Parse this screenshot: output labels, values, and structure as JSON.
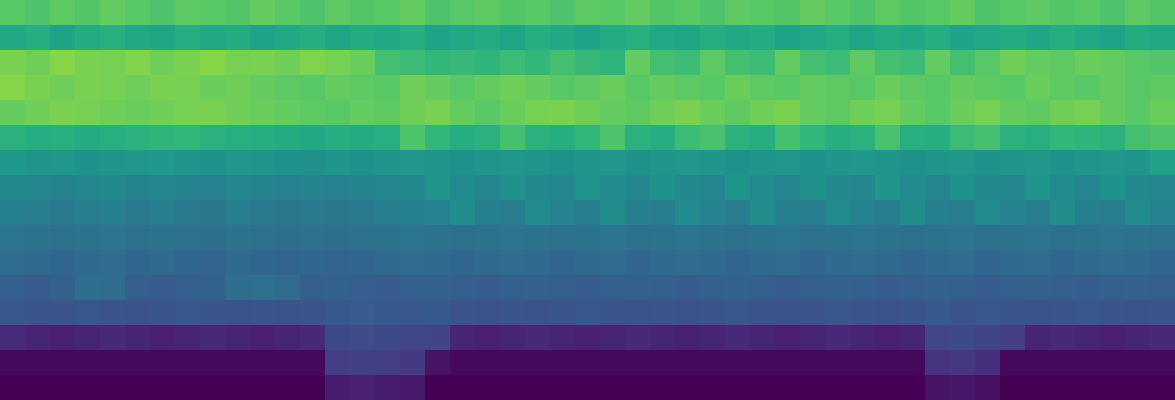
{
  "chart_data": {
    "type": "heatmap",
    "tick_labels": false,
    "color": "viridis",
    "color_range": [
      0,
      1
    ],
    "cells": [
      [
        0.74,
        0.72,
        0.75,
        0.73,
        0.76,
        0.74,
        0.72,
        0.75,
        0.74,
        0.73,
        0.76,
        0.74,
        0.72,
        0.75,
        0.73,
        0.74,
        0.76,
        0.72,
        0.74,
        0.75,
        0.73,
        0.74,
        0.72,
        0.75,
        0.74,
        0.76,
        0.73,
        0.74,
        0.72,
        0.75,
        0.74,
        0.73,
        0.76,
        0.74,
        0.72,
        0.75,
        0.73,
        0.74,
        0.76,
        0.72,
        0.74,
        0.75,
        0.73,
        0.74,
        0.72,
        0.75,
        0.73
      ],
      [
        0.6,
        0.62,
        0.58,
        0.61,
        0.63,
        0.6,
        0.59,
        0.62,
        0.6,
        0.61,
        0.58,
        0.6,
        0.62,
        0.59,
        0.61,
        0.6,
        0.62,
        0.58,
        0.6,
        0.61,
        0.59,
        0.62,
        0.6,
        0.58,
        0.61,
        0.63,
        0.6,
        0.59,
        0.62,
        0.6,
        0.61,
        0.58,
        0.6,
        0.62,
        0.59,
        0.61,
        0.6,
        0.62,
        0.58,
        0.6,
        0.61,
        0.59,
        0.62,
        0.6,
        0.58,
        0.61,
        0.6
      ],
      [
        0.8,
        0.78,
        0.82,
        0.8,
        0.79,
        0.81,
        0.78,
        0.8,
        0.82,
        0.79,
        0.8,
        0.78,
        0.81,
        0.79,
        0.77,
        0.7,
        0.68,
        0.66,
        0.67,
        0.65,
        0.68,
        0.66,
        0.7,
        0.67,
        0.65,
        0.76,
        0.7,
        0.68,
        0.75,
        0.7,
        0.68,
        0.76,
        0.7,
        0.68,
        0.75,
        0.7,
        0.68,
        0.76,
        0.7,
        0.74,
        0.78,
        0.76,
        0.75,
        0.77,
        0.76,
        0.74,
        0.73
      ],
      [
        0.82,
        0.8,
        0.78,
        0.8,
        0.79,
        0.78,
        0.8,
        0.79,
        0.77,
        0.78,
        0.76,
        0.75,
        0.74,
        0.76,
        0.75,
        0.74,
        0.78,
        0.76,
        0.74,
        0.76,
        0.78,
        0.76,
        0.74,
        0.75,
        0.77,
        0.74,
        0.76,
        0.75,
        0.74,
        0.77,
        0.75,
        0.74,
        0.76,
        0.75,
        0.74,
        0.77,
        0.75,
        0.74,
        0.76,
        0.75,
        0.74,
        0.77,
        0.75,
        0.74,
        0.76,
        0.74,
        0.75
      ],
      [
        0.76,
        0.78,
        0.8,
        0.79,
        0.78,
        0.77,
        0.78,
        0.79,
        0.8,
        0.78,
        0.77,
        0.76,
        0.75,
        0.74,
        0.76,
        0.75,
        0.78,
        0.8,
        0.76,
        0.74,
        0.77,
        0.79,
        0.8,
        0.78,
        0.76,
        0.75,
        0.78,
        0.8,
        0.77,
        0.75,
        0.78,
        0.8,
        0.76,
        0.75,
        0.78,
        0.79,
        0.76,
        0.74,
        0.77,
        0.79,
        0.76,
        0.75,
        0.78,
        0.79,
        0.76,
        0.74,
        0.77
      ],
      [
        0.64,
        0.62,
        0.63,
        0.61,
        0.63,
        0.64,
        0.65,
        0.66,
        0.64,
        0.63,
        0.62,
        0.61,
        0.6,
        0.62,
        0.61,
        0.63,
        0.72,
        0.66,
        0.62,
        0.64,
        0.7,
        0.64,
        0.62,
        0.66,
        0.72,
        0.64,
        0.62,
        0.68,
        0.71,
        0.64,
        0.62,
        0.7,
        0.66,
        0.62,
        0.64,
        0.71,
        0.63,
        0.62,
        0.68,
        0.7,
        0.64,
        0.63,
        0.66,
        0.65,
        0.64,
        0.7,
        0.72
      ],
      [
        0.54,
        0.52,
        0.53,
        0.51,
        0.52,
        0.53,
        0.54,
        0.52,
        0.51,
        0.53,
        0.52,
        0.51,
        0.5,
        0.52,
        0.51,
        0.52,
        0.53,
        0.52,
        0.51,
        0.52,
        0.53,
        0.52,
        0.51,
        0.52,
        0.53,
        0.51,
        0.52,
        0.53,
        0.52,
        0.51,
        0.52,
        0.53,
        0.51,
        0.52,
        0.53,
        0.52,
        0.51,
        0.52,
        0.53,
        0.51,
        0.52,
        0.53,
        0.51,
        0.52,
        0.53,
        0.52,
        0.58
      ],
      [
        0.47,
        0.46,
        0.45,
        0.46,
        0.47,
        0.45,
        0.46,
        0.45,
        0.44,
        0.46,
        0.45,
        0.44,
        0.45,
        0.44,
        0.45,
        0.46,
        0.47,
        0.52,
        0.48,
        0.46,
        0.5,
        0.47,
        0.46,
        0.52,
        0.48,
        0.46,
        0.51,
        0.47,
        0.46,
        0.52,
        0.48,
        0.46,
        0.51,
        0.47,
        0.46,
        0.52,
        0.48,
        0.46,
        0.51,
        0.47,
        0.46,
        0.52,
        0.48,
        0.46,
        0.51,
        0.47,
        0.46
      ],
      [
        0.43,
        0.42,
        0.41,
        0.42,
        0.43,
        0.41,
        0.42,
        0.41,
        0.4,
        0.42,
        0.41,
        0.4,
        0.41,
        0.4,
        0.41,
        0.42,
        0.43,
        0.44,
        0.49,
        0.43,
        0.42,
        0.48,
        0.44,
        0.42,
        0.49,
        0.43,
        0.42,
        0.48,
        0.44,
        0.42,
        0.49,
        0.43,
        0.42,
        0.48,
        0.44,
        0.42,
        0.49,
        0.43,
        0.42,
        0.48,
        0.44,
        0.42,
        0.49,
        0.43,
        0.42,
        0.48,
        0.44
      ],
      [
        0.39,
        0.38,
        0.37,
        0.38,
        0.39,
        0.37,
        0.38,
        0.37,
        0.36,
        0.38,
        0.37,
        0.36,
        0.37,
        0.36,
        0.37,
        0.38,
        0.39,
        0.38,
        0.37,
        0.38,
        0.39,
        0.38,
        0.37,
        0.38,
        0.39,
        0.37,
        0.38,
        0.39,
        0.38,
        0.37,
        0.38,
        0.39,
        0.37,
        0.38,
        0.39,
        0.38,
        0.37,
        0.38,
        0.39,
        0.37,
        0.38,
        0.39,
        0.37,
        0.38,
        0.39,
        0.38,
        0.37
      ],
      [
        0.35,
        0.34,
        0.33,
        0.34,
        0.35,
        0.33,
        0.34,
        0.33,
        0.32,
        0.34,
        0.33,
        0.32,
        0.33,
        0.32,
        0.33,
        0.34,
        0.35,
        0.34,
        0.33,
        0.34,
        0.35,
        0.34,
        0.33,
        0.34,
        0.35,
        0.33,
        0.34,
        0.35,
        0.34,
        0.33,
        0.34,
        0.35,
        0.33,
        0.34,
        0.35,
        0.34,
        0.33,
        0.34,
        0.35,
        0.33,
        0.34,
        0.35,
        0.33,
        0.34,
        0.35,
        0.34,
        0.33
      ],
      [
        0.3,
        0.29,
        0.31,
        0.36,
        0.35,
        0.3,
        0.29,
        0.3,
        0.31,
        0.36,
        0.37,
        0.35,
        0.3,
        0.31,
        0.3,
        0.29,
        0.3,
        0.31,
        0.3,
        0.29,
        0.3,
        0.31,
        0.3,
        0.29,
        0.3,
        0.31,
        0.3,
        0.29,
        0.3,
        0.31,
        0.3,
        0.29,
        0.3,
        0.31,
        0.3,
        0.29,
        0.3,
        0.31,
        0.3,
        0.29,
        0.3,
        0.31,
        0.3,
        0.29,
        0.3,
        0.31,
        0.3
      ],
      [
        0.27,
        0.26,
        0.26,
        0.27,
        0.26,
        0.25,
        0.26,
        0.27,
        0.26,
        0.25,
        0.26,
        0.25,
        0.26,
        0.28,
        0.29,
        0.28,
        0.27,
        0.28,
        0.26,
        0.25,
        0.26,
        0.25,
        0.26,
        0.27,
        0.26,
        0.25,
        0.26,
        0.25,
        0.26,
        0.27,
        0.26,
        0.25,
        0.26,
        0.27,
        0.26,
        0.25,
        0.26,
        0.28,
        0.26,
        0.27,
        0.26,
        0.25,
        0.26,
        0.27,
        0.26,
        0.25,
        0.26
      ],
      [
        0.12,
        0.1,
        0.09,
        0.1,
        0.11,
        0.1,
        0.09,
        0.1,
        0.11,
        0.1,
        0.09,
        0.1,
        0.11,
        0.22,
        0.23,
        0.22,
        0.21,
        0.2,
        0.1,
        0.09,
        0.1,
        0.11,
        0.1,
        0.09,
        0.1,
        0.11,
        0.1,
        0.09,
        0.1,
        0.11,
        0.1,
        0.09,
        0.1,
        0.11,
        0.1,
        0.09,
        0.1,
        0.21,
        0.22,
        0.2,
        0.18,
        0.1,
        0.11,
        0.1,
        0.09,
        0.1,
        0.11
      ],
      [
        0.02,
        0.02,
        0.02,
        0.02,
        0.02,
        0.02,
        0.02,
        0.02,
        0.02,
        0.02,
        0.02,
        0.02,
        0.02,
        0.18,
        0.19,
        0.18,
        0.17,
        0.05,
        0.02,
        0.02,
        0.02,
        0.02,
        0.02,
        0.02,
        0.02,
        0.02,
        0.02,
        0.02,
        0.02,
        0.02,
        0.02,
        0.02,
        0.02,
        0.02,
        0.02,
        0.02,
        0.02,
        0.15,
        0.16,
        0.14,
        0.02,
        0.02,
        0.02,
        0.02,
        0.02,
        0.02,
        0.02
      ],
      [
        0,
        0,
        0,
        0,
        0,
        0,
        0,
        0,
        0,
        0,
        0,
        0,
        0,
        0.08,
        0.09,
        0.08,
        0.07,
        0,
        0,
        0,
        0,
        0,
        0,
        0,
        0,
        0,
        0,
        0,
        0,
        0,
        0,
        0,
        0,
        0,
        0,
        0,
        0,
        0.05,
        0.06,
        0.04,
        0,
        0,
        0,
        0,
        0,
        0,
        0
      ]
    ]
  }
}
